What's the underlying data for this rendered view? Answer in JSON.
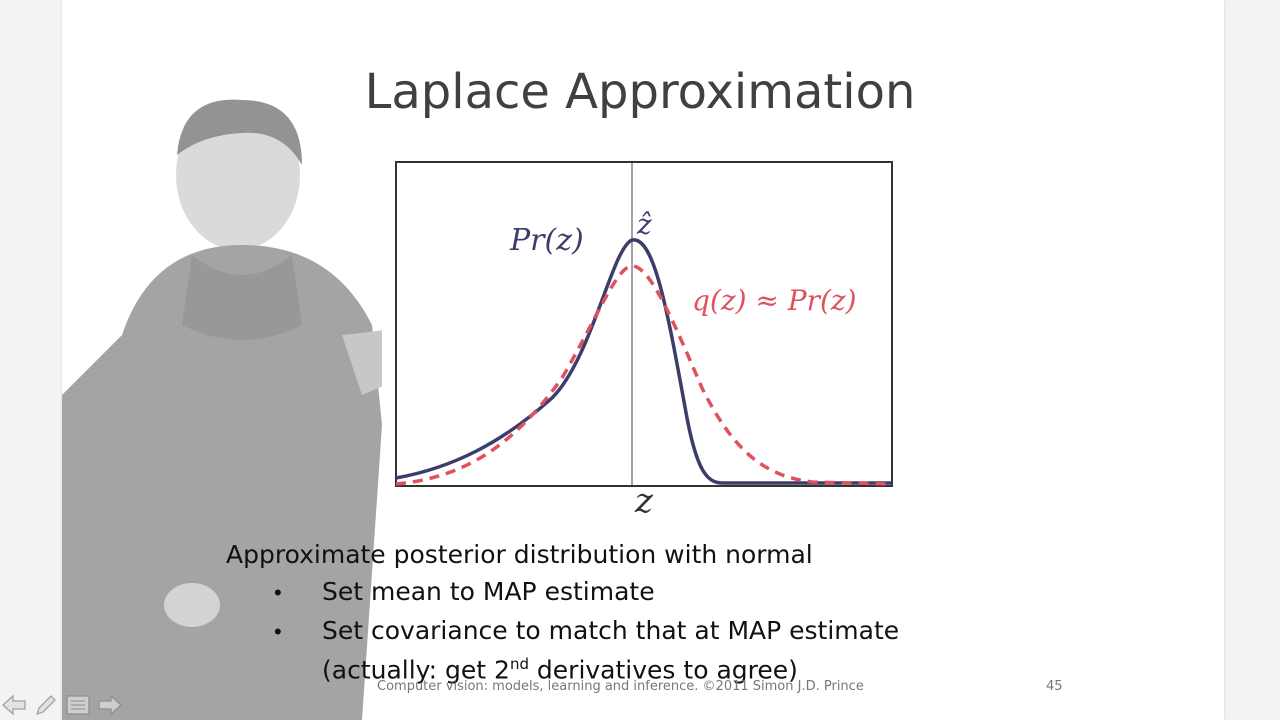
{
  "slide": {
    "title": "Laplace Approximation",
    "chart_labels": {
      "pr_label": "Pr(z)",
      "zhat_label": "ẑ",
      "q_label": "q(z) ≈ Pr(z)",
      "x_label": "z"
    },
    "main_text": "Approximate posterior distribution with normal",
    "bullets": [
      "Set mean to MAP estimate",
      "Set covariance to match that at MAP estimate"
    ],
    "continuation_prefix": "(actually: get 2",
    "continuation_sup": "nd",
    "continuation_suffix": " derivatives to agree)",
    "footer": "Computer vision: models, learning and inference.  ©2011 Simon J.D. Prince",
    "page_number": "45"
  },
  "colors": {
    "pr_curve": "#3b3d6b",
    "q_curve": "#e0505e",
    "frame": "#333333"
  },
  "nav": {
    "icons": [
      "arrow-left-icon",
      "pencil-icon",
      "menu-icon",
      "arrow-right-icon"
    ]
  }
}
